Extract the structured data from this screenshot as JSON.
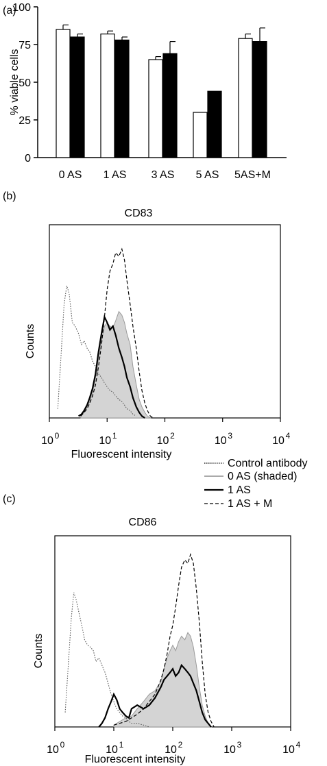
{
  "chart_data": [
    {
      "panel": "(a)",
      "type": "bar",
      "title": "",
      "xlabel": "",
      "ylabel": "% viable cells",
      "ylim": [
        0,
        100
      ],
      "yticks": [
        0,
        25,
        50,
        75,
        100
      ],
      "categories": [
        "0 AS",
        "1 AS",
        "3 AS",
        "5 AS",
        "5AS+M"
      ],
      "series": [
        {
          "color": "#ffffff",
          "values": [
            85,
            82,
            65,
            30,
            79
          ],
          "errors": [
            3,
            2,
            2,
            0,
            3
          ]
        },
        {
          "color": "#000000",
          "values": [
            80,
            78,
            69,
            44,
            77
          ],
          "errors": [
            2,
            2,
            8,
            0,
            9
          ]
        }
      ],
      "grid": false
    },
    {
      "panel": "(b)",
      "type": "line",
      "title": "CD83",
      "xlabel": "Fluorescent intensity",
      "ylabel": "Counts",
      "xscale": "log",
      "xlim": [
        1,
        10000
      ],
      "xtick_labels": [
        {
          "base": "10",
          "exp": "0"
        },
        {
          "base": "10",
          "exp": "1"
        },
        {
          "base": "10",
          "exp": "2"
        },
        {
          "base": "10",
          "exp": "3"
        },
        {
          "base": "10",
          "exp": "4"
        }
      ],
      "ylim": [
        0,
        1
      ],
      "grid": false,
      "series": [
        {
          "style": "dotted",
          "x": [
            1.4,
            1.6,
            1.8,
            2.0,
            2.2,
            2.5,
            2.8,
            3.2,
            3.6,
            4.0,
            4.5,
            5.0,
            5.6,
            6.3,
            7.1,
            8.0,
            9.0,
            10,
            11.2,
            12.6,
            14.1,
            16,
            18,
            20,
            22,
            25,
            28,
            32
          ],
          "y": [
            0.05,
            0.35,
            0.62,
            0.72,
            0.68,
            0.52,
            0.5,
            0.46,
            0.4,
            0.42,
            0.38,
            0.36,
            0.31,
            0.28,
            0.24,
            0.22,
            0.19,
            0.17,
            0.15,
            0.14,
            0.12,
            0.1,
            0.09,
            0.07,
            0.05,
            0.04,
            0.02,
            0.01
          ]
        },
        {
          "style": "shaded",
          "x": [
            3.5,
            4.0,
            4.5,
            5.0,
            5.6,
            6.3,
            7.1,
            8.0,
            9.0,
            10,
            11.2,
            12.6,
            14.1,
            16,
            18,
            20,
            22,
            25,
            28,
            32,
            36,
            40,
            45,
            50,
            56
          ],
          "y": [
            0.01,
            0.03,
            0.06,
            0.09,
            0.14,
            0.22,
            0.32,
            0.42,
            0.5,
            0.52,
            0.5,
            0.49,
            0.53,
            0.58,
            0.56,
            0.52,
            0.46,
            0.4,
            0.28,
            0.18,
            0.1,
            0.06,
            0.03,
            0.01,
            0.0
          ]
        },
        {
          "style": "solid",
          "x": [
            3.2,
            3.6,
            4.0,
            4.5,
            5.0,
            5.6,
            6.3,
            7.1,
            8.0,
            9.0,
            10,
            11.2,
            12.6,
            14.1,
            16,
            18,
            20,
            22,
            25,
            28,
            32,
            36,
            40,
            45
          ],
          "y": [
            0.01,
            0.02,
            0.04,
            0.07,
            0.11,
            0.16,
            0.24,
            0.36,
            0.46,
            0.55,
            0.52,
            0.48,
            0.5,
            0.45,
            0.38,
            0.33,
            0.28,
            0.22,
            0.17,
            0.11,
            0.06,
            0.03,
            0.01,
            0.0
          ]
        },
        {
          "style": "dashed",
          "x": [
            3.5,
            4.0,
            4.5,
            5.0,
            5.6,
            6.3,
            7.1,
            8.0,
            9.0,
            10,
            11.2,
            12.6,
            14.1,
            16,
            18,
            20,
            22,
            25,
            28,
            32,
            36,
            40,
            45,
            50,
            56,
            63
          ],
          "y": [
            0.01,
            0.03,
            0.05,
            0.08,
            0.12,
            0.18,
            0.28,
            0.4,
            0.55,
            0.7,
            0.8,
            0.84,
            0.9,
            0.88,
            0.92,
            0.86,
            0.75,
            0.62,
            0.5,
            0.38,
            0.25,
            0.15,
            0.08,
            0.04,
            0.01,
            0.0
          ]
        }
      ]
    },
    {
      "panel": "(c)",
      "type": "line",
      "title": "CD86",
      "xlabel": "Fluorescent intensity",
      "ylabel": "Counts",
      "xscale": "log",
      "xlim": [
        1,
        10000
      ],
      "xtick_labels": [
        {
          "base": "10",
          "exp": "0"
        },
        {
          "base": "10",
          "exp": "1"
        },
        {
          "base": "10",
          "exp": "2"
        },
        {
          "base": "10",
          "exp": "3"
        },
        {
          "base": "10",
          "exp": "4"
        }
      ],
      "ylim": [
        0,
        1
      ],
      "grid": false,
      "series": [
        {
          "style": "dotted",
          "x": [
            1.5,
            1.7,
            1.9,
            2.1,
            2.3,
            2.6,
            2.9,
            3.2,
            3.6,
            4.0,
            4.5,
            5.0,
            5.6,
            6.3,
            7.1,
            8.0,
            9.0,
            10,
            11.2,
            12.6,
            14.1,
            16,
            18,
            20,
            25,
            32,
            40
          ],
          "y": [
            0.08,
            0.35,
            0.6,
            0.74,
            0.7,
            0.62,
            0.55,
            0.48,
            0.45,
            0.44,
            0.42,
            0.36,
            0.38,
            0.34,
            0.3,
            0.24,
            0.18,
            0.14,
            0.1,
            0.08,
            0.06,
            0.05,
            0.03,
            0.02,
            0.02,
            0.01,
            0.0
          ]
        },
        {
          "style": "shaded",
          "x": [
            10,
            12.6,
            16,
            20,
            25,
            32,
            40,
            50,
            63,
            71,
            80,
            90,
            100,
            112,
            126,
            141,
            160,
            180,
            200,
            224,
            251,
            282,
            316,
            355,
            398,
            447
          ],
          "y": [
            0.01,
            0.03,
            0.05,
            0.06,
            0.1,
            0.14,
            0.18,
            0.2,
            0.25,
            0.32,
            0.38,
            0.42,
            0.45,
            0.42,
            0.47,
            0.5,
            0.48,
            0.52,
            0.5,
            0.44,
            0.34,
            0.22,
            0.12,
            0.06,
            0.02,
            0.0
          ]
        },
        {
          "style": "solid",
          "x": [
            5.6,
            6.3,
            7.1,
            8.0,
            9.0,
            10,
            11.2,
            12.6,
            14.1,
            16,
            18,
            20,
            25,
            32,
            40,
            50,
            63,
            71,
            80,
            90,
            100,
            112,
            126,
            141,
            160,
            180,
            200,
            224,
            251,
            282,
            316,
            355,
            398,
            447
          ],
          "y": [
            0.0,
            0.02,
            0.05,
            0.1,
            0.14,
            0.18,
            0.15,
            0.1,
            0.08,
            0.06,
            0.05,
            0.1,
            0.12,
            0.1,
            0.12,
            0.16,
            0.22,
            0.26,
            0.28,
            0.3,
            0.32,
            0.28,
            0.3,
            0.34,
            0.32,
            0.3,
            0.28,
            0.24,
            0.2,
            0.14,
            0.08,
            0.04,
            0.02,
            0.0
          ]
        },
        {
          "style": "dashed",
          "x": [
            10,
            12.6,
            16,
            20,
            25,
            32,
            40,
            50,
            63,
            71,
            80,
            90,
            100,
            112,
            126,
            141,
            160,
            180,
            200,
            224,
            251,
            282,
            316,
            355,
            398,
            447,
            501
          ],
          "y": [
            0.01,
            0.02,
            0.03,
            0.05,
            0.07,
            0.1,
            0.14,
            0.18,
            0.26,
            0.32,
            0.4,
            0.5,
            0.56,
            0.66,
            0.78,
            0.88,
            0.92,
            0.9,
            0.95,
            0.9,
            0.76,
            0.58,
            0.36,
            0.18,
            0.08,
            0.03,
            0.0
          ]
        }
      ]
    }
  ],
  "panel_labels": [
    "(a)",
    "(b)",
    "(c)"
  ],
  "legend": {
    "entries": [
      {
        "label": "Control antibody",
        "style": "dotted"
      },
      {
        "label": "0 AS (shaded)",
        "style": "grey"
      },
      {
        "label": "1 AS",
        "style": "solid"
      },
      {
        "label": "1 AS + M",
        "style": "dashed"
      }
    ]
  }
}
